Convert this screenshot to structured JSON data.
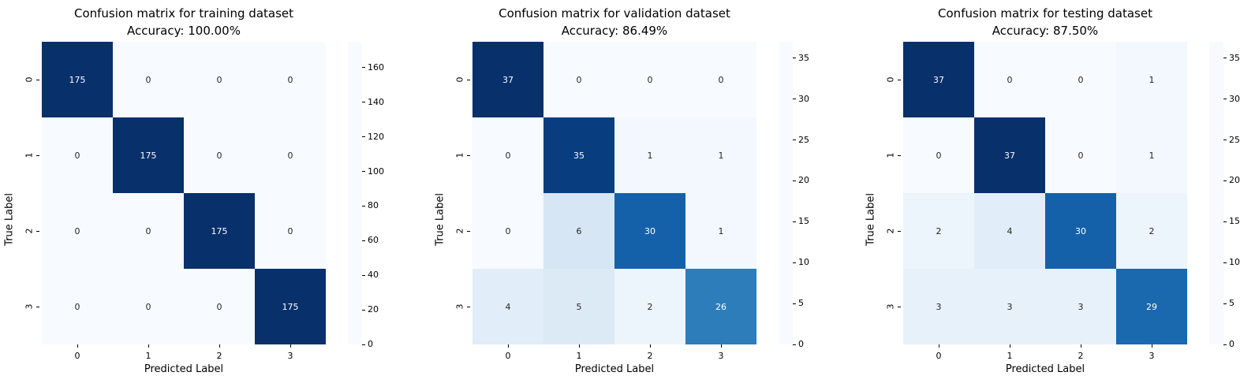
{
  "figure": {
    "background": "#ffffff"
  },
  "style": {
    "colormap_name": "Blues",
    "colormap_stops": [
      "#f7fbff",
      "#deebf7",
      "#c6dbef",
      "#9ecae1",
      "#6baed6",
      "#4292c6",
      "#2171b5",
      "#08519c",
      "#08306b"
    ],
    "annotation_dark": "#262626",
    "annotation_light": "#ffffff",
    "axis_text_color": "#000000"
  },
  "chart_data": [
    {
      "type": "heatmap",
      "title": "Confusion matrix for training dataset",
      "subtitle": "Accuracy: 100.00%",
      "xlabel": "Predicted Label",
      "ylabel": "True Label",
      "x_ticklabels": [
        "0",
        "1",
        "2",
        "3"
      ],
      "y_ticklabels": [
        "0",
        "1",
        "2",
        "3"
      ],
      "matrix": [
        [
          175,
          0,
          0,
          0
        ],
        [
          0,
          175,
          0,
          0
        ],
        [
          0,
          0,
          175,
          0
        ],
        [
          0,
          0,
          0,
          175
        ]
      ],
      "vmin": 0,
      "vmax": 175,
      "colorbar_ticks": [
        0,
        20,
        40,
        60,
        80,
        100,
        120,
        140,
        160
      ],
      "colorbar_position": "right",
      "grid": false
    },
    {
      "type": "heatmap",
      "title": "Confusion matrix for validation dataset",
      "subtitle": "Accuracy: 86.49%",
      "xlabel": "Predicted Label",
      "ylabel": "True Label",
      "x_ticklabels": [
        "0",
        "1",
        "2",
        "3"
      ],
      "y_ticklabels": [
        "0",
        "1",
        "2",
        "3"
      ],
      "matrix": [
        [
          37,
          0,
          0,
          0
        ],
        [
          0,
          35,
          1,
          1
        ],
        [
          0,
          6,
          30,
          1
        ],
        [
          4,
          5,
          2,
          26
        ]
      ],
      "vmin": 0,
      "vmax": 37,
      "colorbar_ticks": [
        0,
        5,
        10,
        15,
        20,
        25,
        30,
        35
      ],
      "colorbar_position": "right",
      "grid": false
    },
    {
      "type": "heatmap",
      "title": "Confusion matrix for testing dataset",
      "subtitle": "Accuracy: 87.50%",
      "xlabel": "Predicted Label",
      "ylabel": "True Label",
      "x_ticklabels": [
        "0",
        "1",
        "2",
        "3"
      ],
      "y_ticklabels": [
        "0",
        "1",
        "2",
        "3"
      ],
      "matrix": [
        [
          37,
          0,
          0,
          1
        ],
        [
          0,
          37,
          0,
          1
        ],
        [
          2,
          4,
          30,
          2
        ],
        [
          3,
          3,
          3,
          29
        ]
      ],
      "vmin": 0,
      "vmax": 37,
      "colorbar_ticks": [
        0,
        5,
        10,
        15,
        20,
        25,
        30,
        35
      ],
      "colorbar_position": "right",
      "grid": false
    }
  ]
}
